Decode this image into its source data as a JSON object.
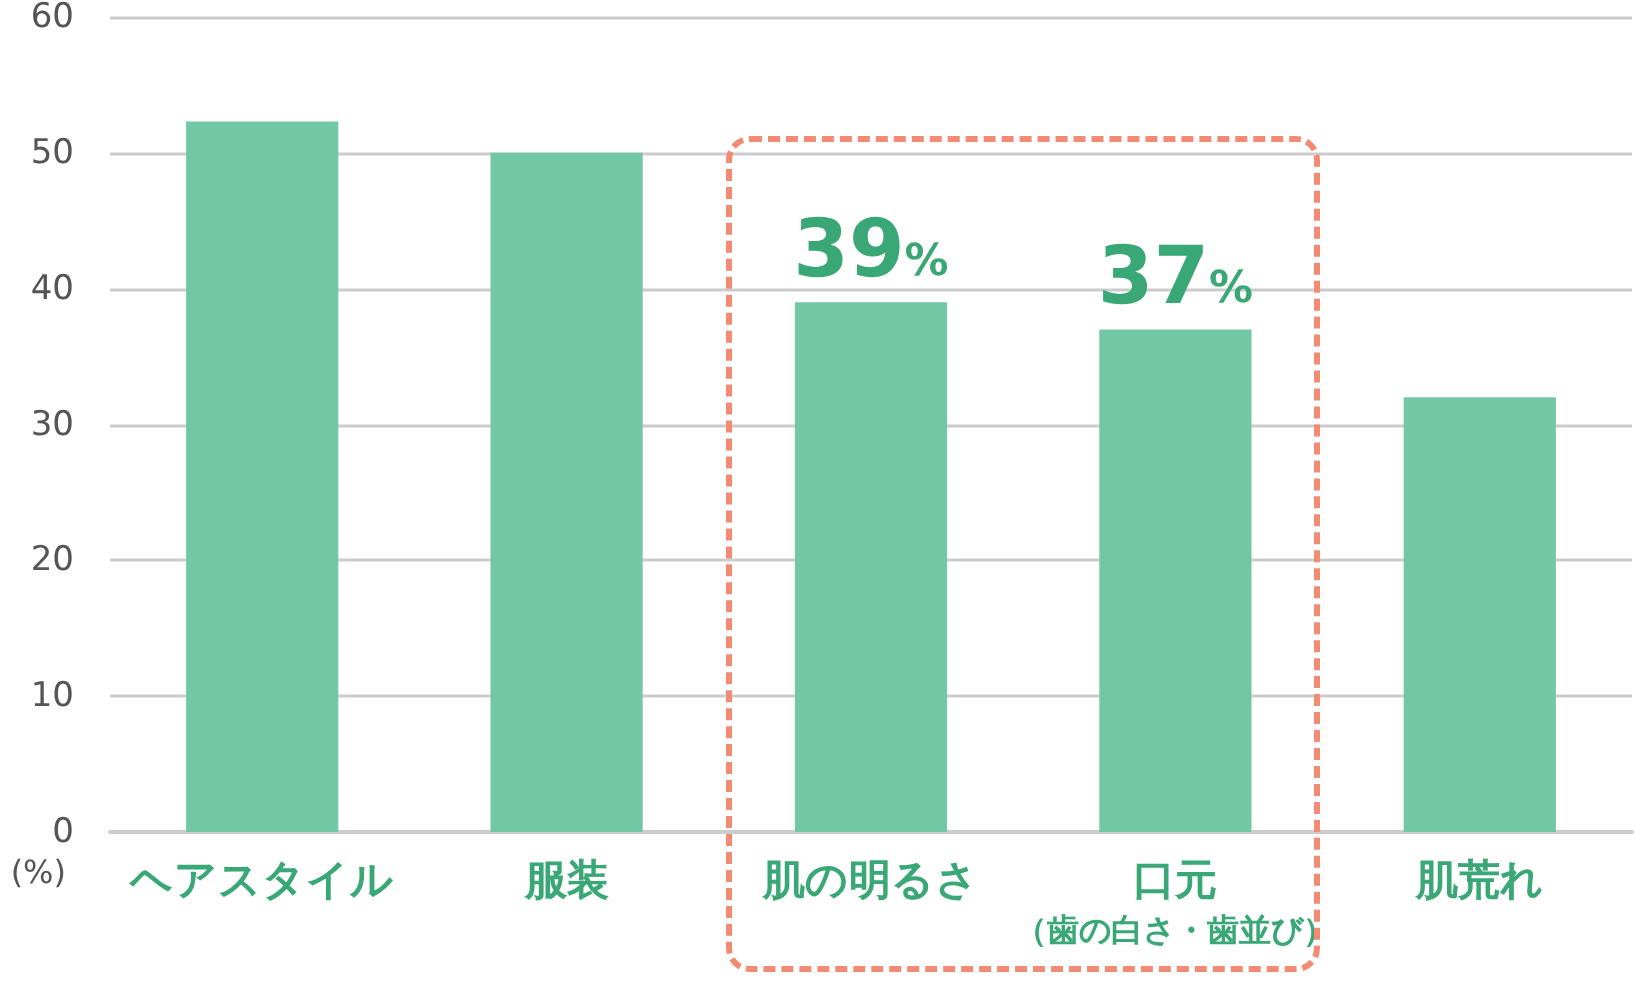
{
  "chart_data": {
    "type": "bar",
    "ylabel": "(%)",
    "categories": [
      "ヘアスタイル",
      "服装",
      "肌の明るさ",
      "口元（歯の白さ・歯並び）",
      "肌荒れ"
    ],
    "values": [
      52.3,
      50,
      39,
      37,
      32
    ],
    "color": "#72c8a5",
    "value_labels": [
      null,
      null,
      "39%",
      "37%",
      null
    ],
    "ylim": [
      0,
      60
    ],
    "yticks": [
      0,
      10,
      20,
      30,
      40,
      50,
      60
    ],
    "grid": "y"
  }
}
